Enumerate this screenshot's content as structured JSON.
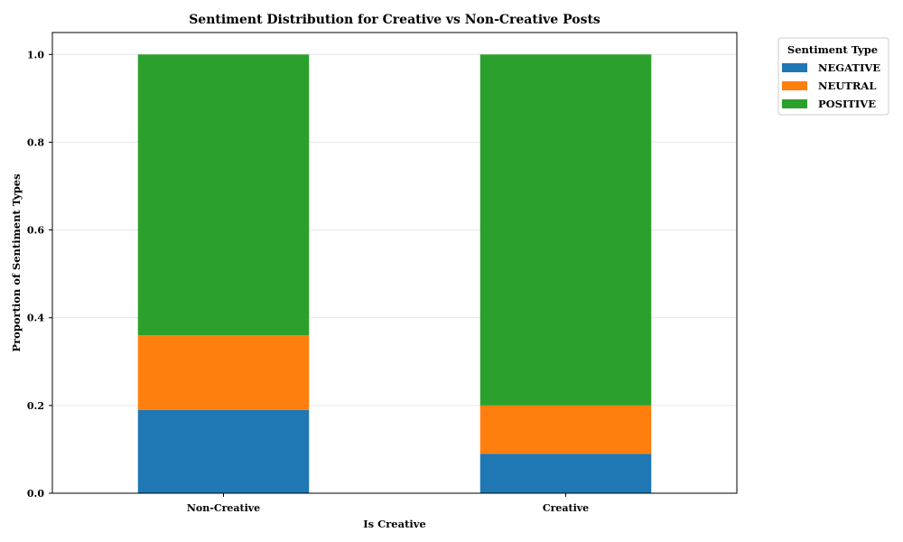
{
  "chart_data": {
    "type": "bar",
    "stacked": true,
    "title": "Sentiment Distribution for Creative vs Non-Creative Posts",
    "xlabel": "Is Creative",
    "ylabel": "Proportion of Sentiment Types",
    "categories": [
      "Non-Creative",
      "Creative"
    ],
    "series": [
      {
        "name": "NEGATIVE",
        "values": [
          0.19,
          0.09
        ],
        "color": "#1f77b4"
      },
      {
        "name": "NEUTRAL",
        "values": [
          0.17,
          0.11
        ],
        "color": "#ff7f0e"
      },
      {
        "name": "POSITIVE",
        "values": [
          0.64,
          0.8
        ],
        "color": "#2ca02c"
      }
    ],
    "ylim": [
      0,
      1.05
    ],
    "yticks": [
      "0.0",
      "0.2",
      "0.4",
      "0.6",
      "0.8",
      "1.0"
    ],
    "grid": "horizontal",
    "legend": {
      "title": "Sentiment Type",
      "placement": "outside-top-right"
    }
  }
}
